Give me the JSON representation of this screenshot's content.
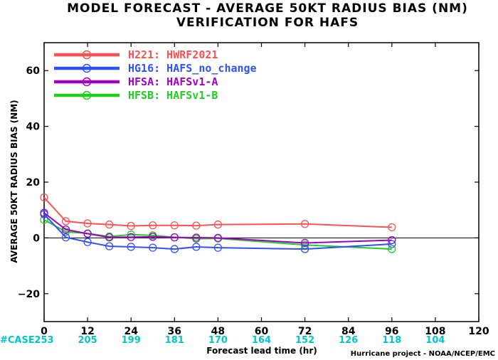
{
  "chart_data": {
    "type": "line",
    "title": "MODEL FORECAST - AVERAGE 50KT RADIUS BIAS (NM)",
    "subtitle": "VERIFICATION FOR HAFS",
    "xlabel": "Forecast lead time (hr)",
    "ylabel": "AVERAGE 50KT RADIUS BIAS (NM)",
    "xlim": [
      0,
      120
    ],
    "ylim": [
      -30,
      70
    ],
    "x_ticks": [
      0,
      12,
      24,
      36,
      48,
      60,
      72,
      84,
      96,
      108,
      120
    ],
    "y_ticks": [
      -20,
      0,
      20,
      40,
      60
    ],
    "zero_line": true,
    "grid": false,
    "legend_position": "top-left",
    "case_label": "#CASE",
    "case_counts": [
      {
        "x": 0,
        "n": "253"
      },
      {
        "x": 12,
        "n": "205"
      },
      {
        "x": 24,
        "n": "199"
      },
      {
        "x": 36,
        "n": "181"
      },
      {
        "x": 48,
        "n": "170"
      },
      {
        "x": 60,
        "n": "164"
      },
      {
        "x": 72,
        "n": "152"
      },
      {
        "x": 84,
        "n": "126"
      },
      {
        "x": 96,
        "n": "118"
      },
      {
        "x": 108,
        "n": "104"
      }
    ],
    "x": [
      0,
      6,
      12,
      18,
      24,
      30,
      36,
      42,
      48,
      72,
      96
    ],
    "series": [
      {
        "name": "H221: HWRF2021",
        "color": "#ff5050",
        "values": [
          14.5,
          6.0,
          5.2,
          4.8,
          4.3,
          4.5,
          4.5,
          4.4,
          4.8,
          5.0,
          3.8
        ]
      },
      {
        "name": "HG16: HAFS_no_change",
        "color": "#3050ff",
        "values": [
          8.5,
          0.2,
          -1.5,
          -3.0,
          -3.2,
          -3.5,
          -4.0,
          -3.2,
          -3.5,
          -4.0,
          -2.2
        ]
      },
      {
        "name": "HFSA: HAFSv1-A",
        "color": "#a000c8",
        "values": [
          9.0,
          3.0,
          1.5,
          0.2,
          0.3,
          0.4,
          0.2,
          0.1,
          0.0,
          -1.8,
          -0.8
        ]
      },
      {
        "name": "HFSB: HAFSv1-B",
        "color": "#20d020",
        "values": [
          6.5,
          2.2,
          1.6,
          0.5,
          1.2,
          0.9,
          0.2,
          -0.3,
          -0.2,
          -2.5,
          -4.0
        ]
      }
    ]
  },
  "credit": "Hurricane project - NOAA/NCEP/EMC"
}
